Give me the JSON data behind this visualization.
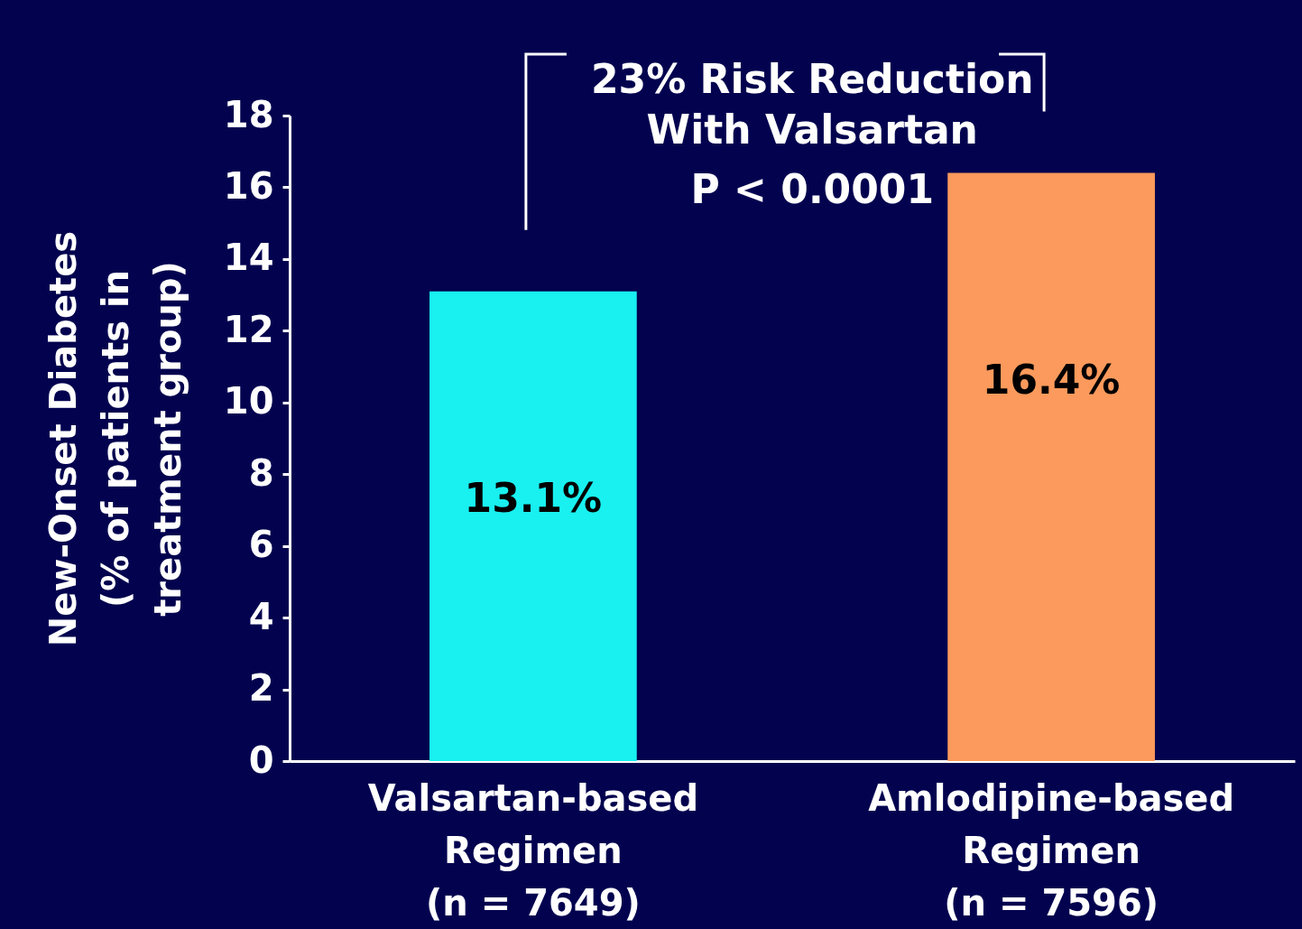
{
  "chart_data": {
    "type": "bar",
    "categories": [
      "Valsartan-based\nRegimen\n(n = 7649)",
      "Amlodipine-based\nRegimen\n(n = 7596)"
    ],
    "values": [
      13.1,
      16.4
    ],
    "colors": [
      "#19f0f0",
      "#fb9a5c"
    ],
    "value_labels": [
      "13.1%",
      "16.4%"
    ],
    "ylabel": "New-Onset Diabetes\n(% of patients in\ntreatment group)",
    "ylim": [
      0,
      18
    ],
    "yticks": [
      0,
      2,
      4,
      6,
      8,
      10,
      12,
      14,
      16,
      18
    ],
    "annotations": [
      "23% Risk Reduction\nWith Valsartan",
      "P < 0.0001"
    ],
    "grid": false,
    "legend": false
  }
}
